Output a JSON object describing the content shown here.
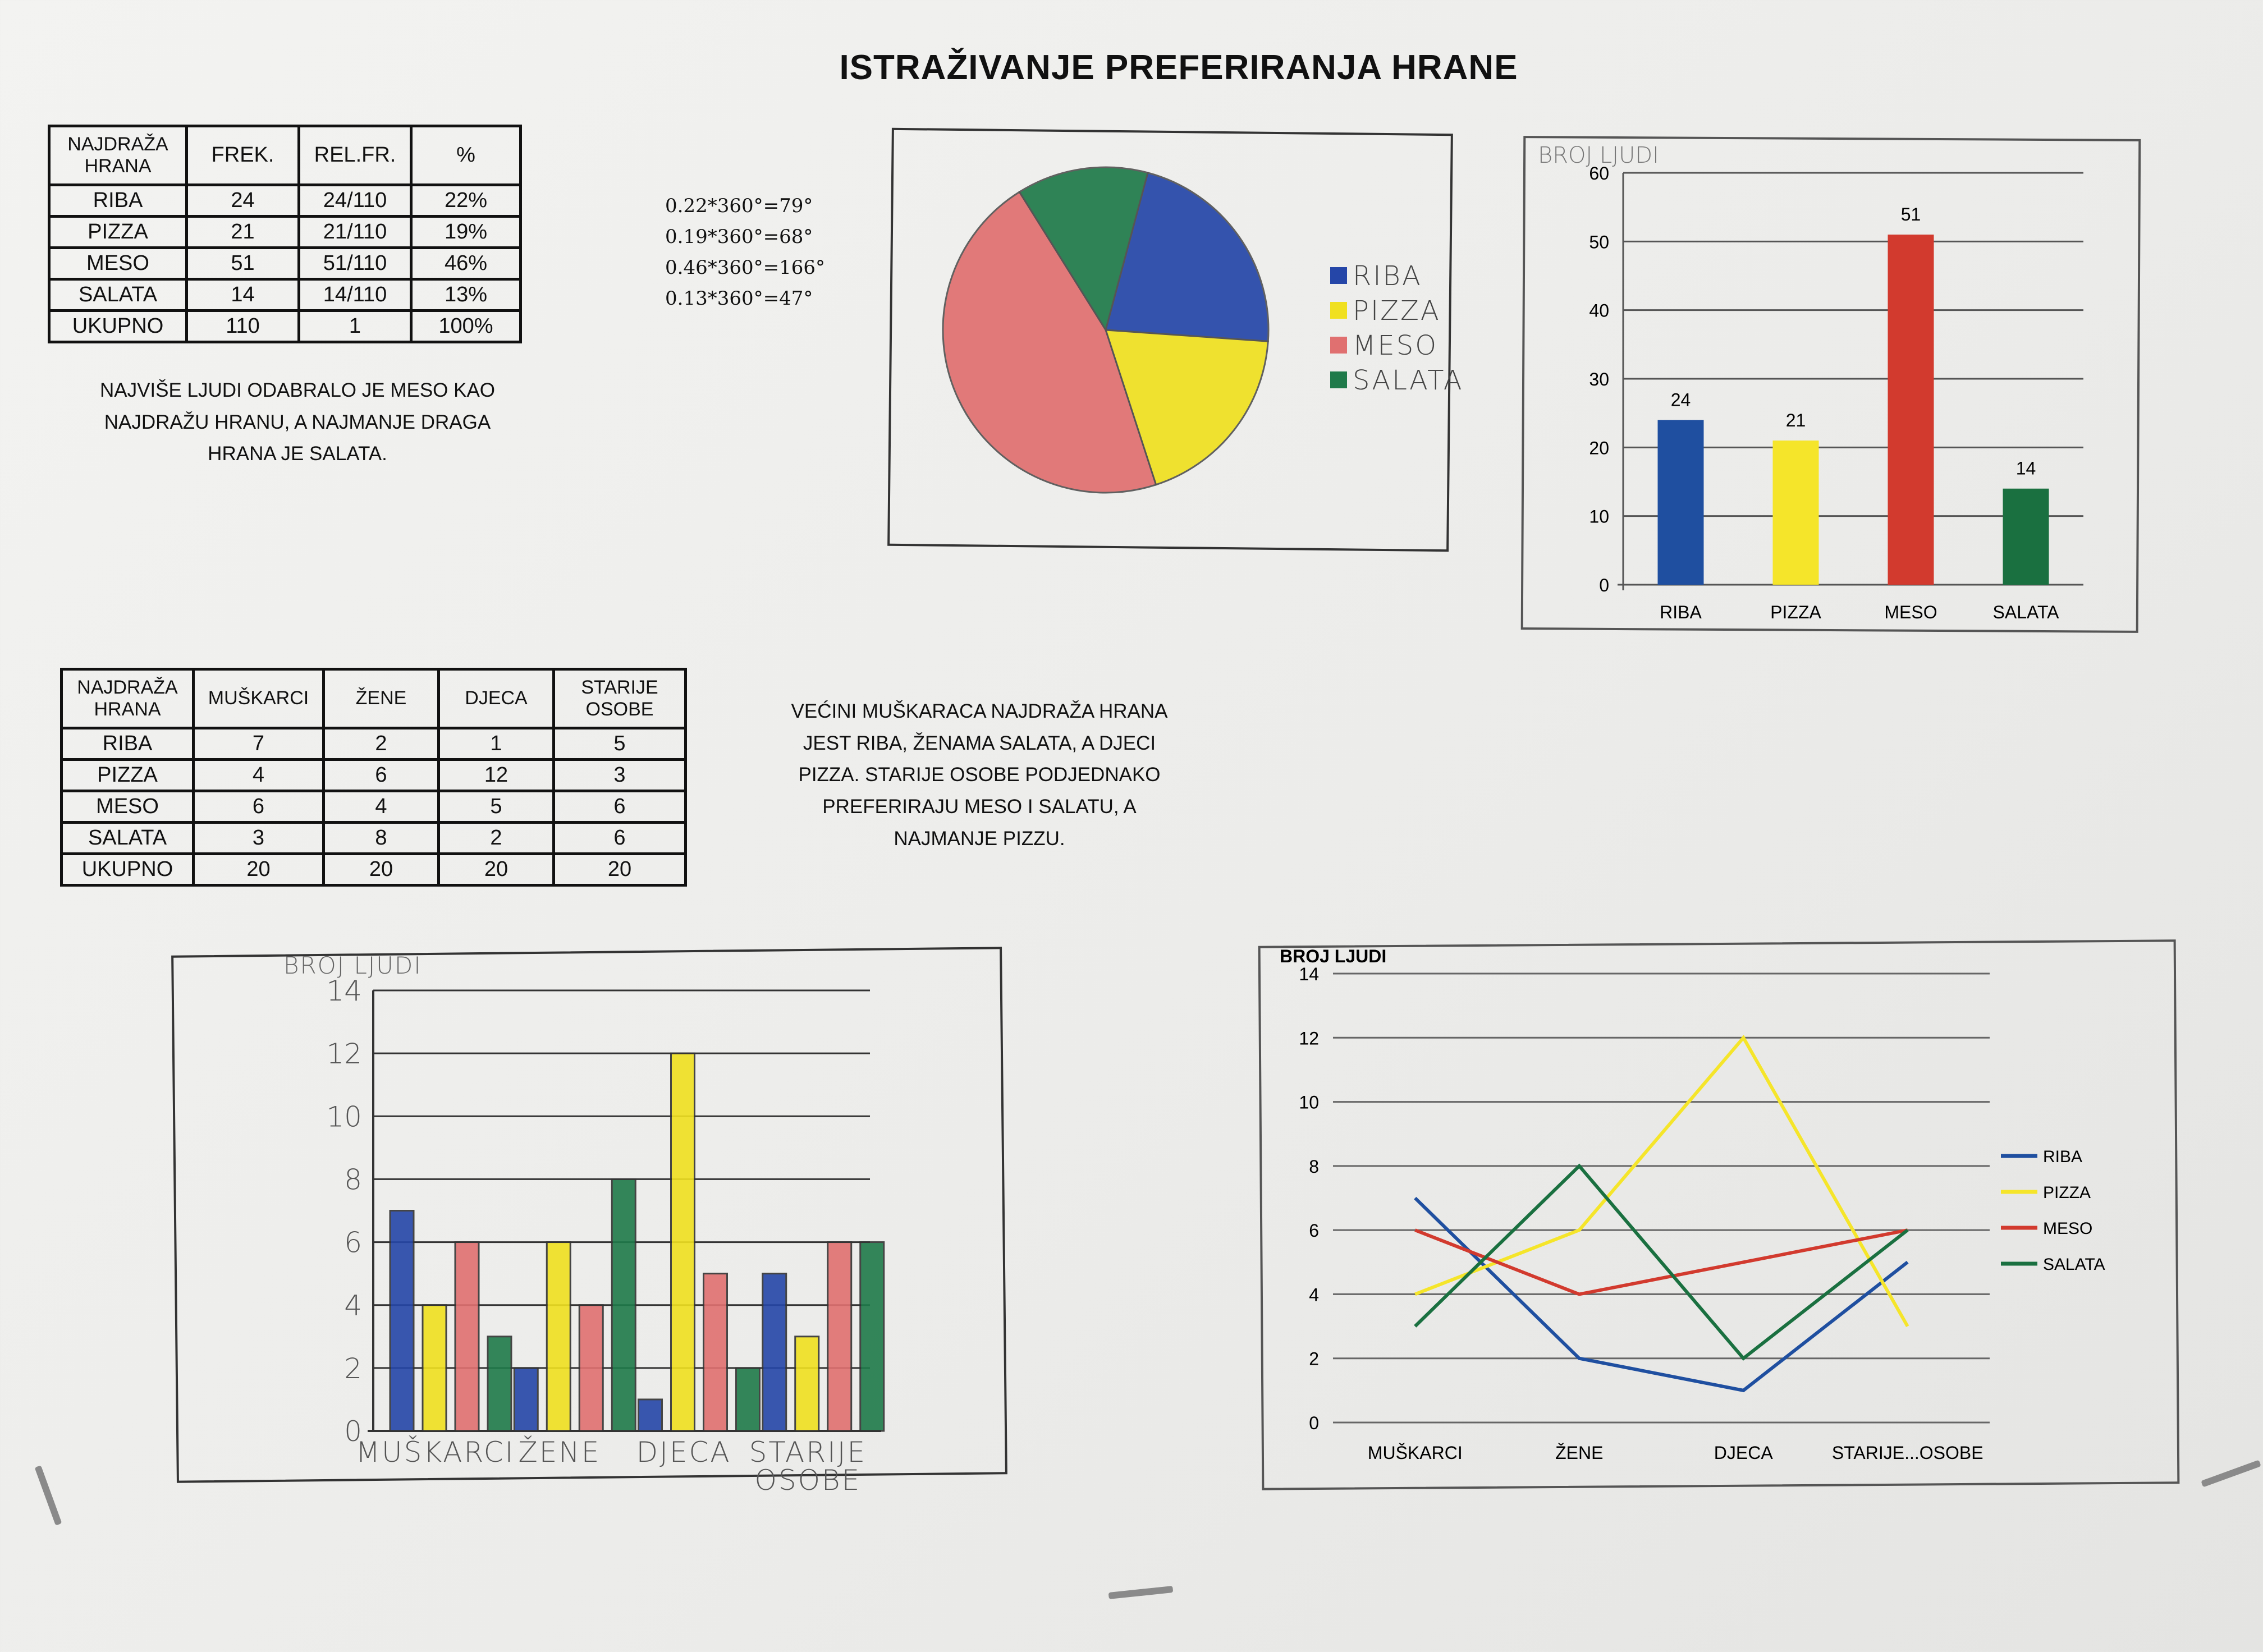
{
  "title": "ISTRAŽIVANJE PREFERIRANJA HRANE",
  "table1": {
    "headers": [
      "NAJDRAŽA HRANA",
      "FREK.",
      "REL.FR.",
      "%"
    ],
    "rows": [
      [
        "RIBA",
        "24",
        "24/110",
        "22%"
      ],
      [
        "PIZZA",
        "21",
        "21/110",
        "19%"
      ],
      [
        "MESO",
        "51",
        "51/110",
        "46%"
      ],
      [
        "SALATA",
        "14",
        "14/110",
        "13%"
      ],
      [
        "UKUPNO",
        "110",
        "1",
        "100%"
      ]
    ]
  },
  "note1": "NAJVIŠE LJUDI ODABRALO JE MESO KAO NAJDRAŽU HRANU, A NAJMANJE DRAGA HRANA JE SALATA.",
  "calculations": [
    "0.22*360°=79°",
    "0.19*360°=68°",
    "0.46*360°=166°",
    "0.13*360°=47°"
  ],
  "table2": {
    "headers": [
      "NAJDRAŽA HRANA",
      "MUŠKARCI",
      "ŽENE",
      "DJECA",
      "STARIJE OSOBE"
    ],
    "rows": [
      [
        "RIBA",
        "7",
        "2",
        "1",
        "5"
      ],
      [
        "PIZZA",
        "4",
        "6",
        "12",
        "3"
      ],
      [
        "MESO",
        "6",
        "4",
        "5",
        "6"
      ],
      [
        "SALATA",
        "3",
        "8",
        "2",
        "6"
      ],
      [
        "UKUPNO",
        "20",
        "20",
        "20",
        "20"
      ]
    ]
  },
  "note2": "VEĆINI MUŠKARACA NAJDRAŽA HRANA JEST RIBA, ŽENAMA SALATA, A DJECI PIZZA. STARIJE OSOBE PODJEDNAKO PREFERIRAJU MESO I SALATU, A NAJMANJE PIZZU.",
  "colors": {
    "riba": "#2546a8",
    "pizza": "#f0e020",
    "meso": "#e07070",
    "salata": "#1f7a4a",
    "riba_print": "#1f4fa0",
    "pizza_print": "#f5e52a",
    "meso_print": "#d23a2e",
    "salata_print": "#1a7040"
  },
  "chart_data": [
    {
      "type": "pie",
      "categories": [
        "RIBA",
        "PIZZA",
        "MESO",
        "SALATA"
      ],
      "values": [
        79,
        68,
        166,
        47
      ],
      "legend": [
        "RIBA",
        "PIZZA",
        "MESO",
        "SALATA"
      ],
      "legend_position": "right"
    },
    {
      "type": "bar",
      "ylabel": "BROJ LJUDI",
      "categories": [
        "RIBA",
        "PIZZA",
        "MESO",
        "SALATA"
      ],
      "values": [
        24,
        21,
        51,
        14
      ],
      "ylim": [
        0,
        60
      ],
      "yticks": [
        "0",
        "10",
        "20",
        "30",
        "40",
        "50",
        "60"
      ],
      "data_labels": [
        "24",
        "21",
        "51",
        "14"
      ],
      "grid": true
    },
    {
      "type": "bar",
      "ylabel": "BROJ LJUDI",
      "categories": [
        "MUŠKARCI",
        "ŽENE",
        "DJECA",
        "STARIJE OSOBE"
      ],
      "series": [
        {
          "values": [
            7,
            2,
            1,
            5
          ]
        },
        {
          "values": [
            4,
            6,
            12,
            3
          ]
        },
        {
          "values": [
            6,
            4,
            5,
            6
          ]
        },
        {
          "values": [
            3,
            8,
            2,
            6
          ]
        }
      ],
      "ylim": [
        0,
        14
      ],
      "yticks": [
        "0",
        "2",
        "4",
        "6",
        "8",
        "10",
        "12",
        "14"
      ],
      "grid": true
    },
    {
      "type": "line",
      "ylabel": "BROJ LJUDI",
      "categories": [
        "MUŠKARCI",
        "ŽENE",
        "DJECA",
        "STARIJE...OSOBE"
      ],
      "series": [
        {
          "name": "RIBA",
          "values": [
            7,
            2,
            1,
            5
          ]
        },
        {
          "name": "PIZZA",
          "values": [
            4,
            6,
            12,
            3
          ]
        },
        {
          "name": "MESO",
          "values": [
            6,
            4,
            5,
            6
          ]
        },
        {
          "name": "SALATA",
          "values": [
            3,
            8,
            2,
            6
          ]
        }
      ],
      "ylim": [
        0,
        14
      ],
      "yticks": [
        "0",
        "2",
        "4",
        "6",
        "8",
        "10",
        "12",
        "14"
      ],
      "legend_position": "right",
      "grid": true
    }
  ]
}
